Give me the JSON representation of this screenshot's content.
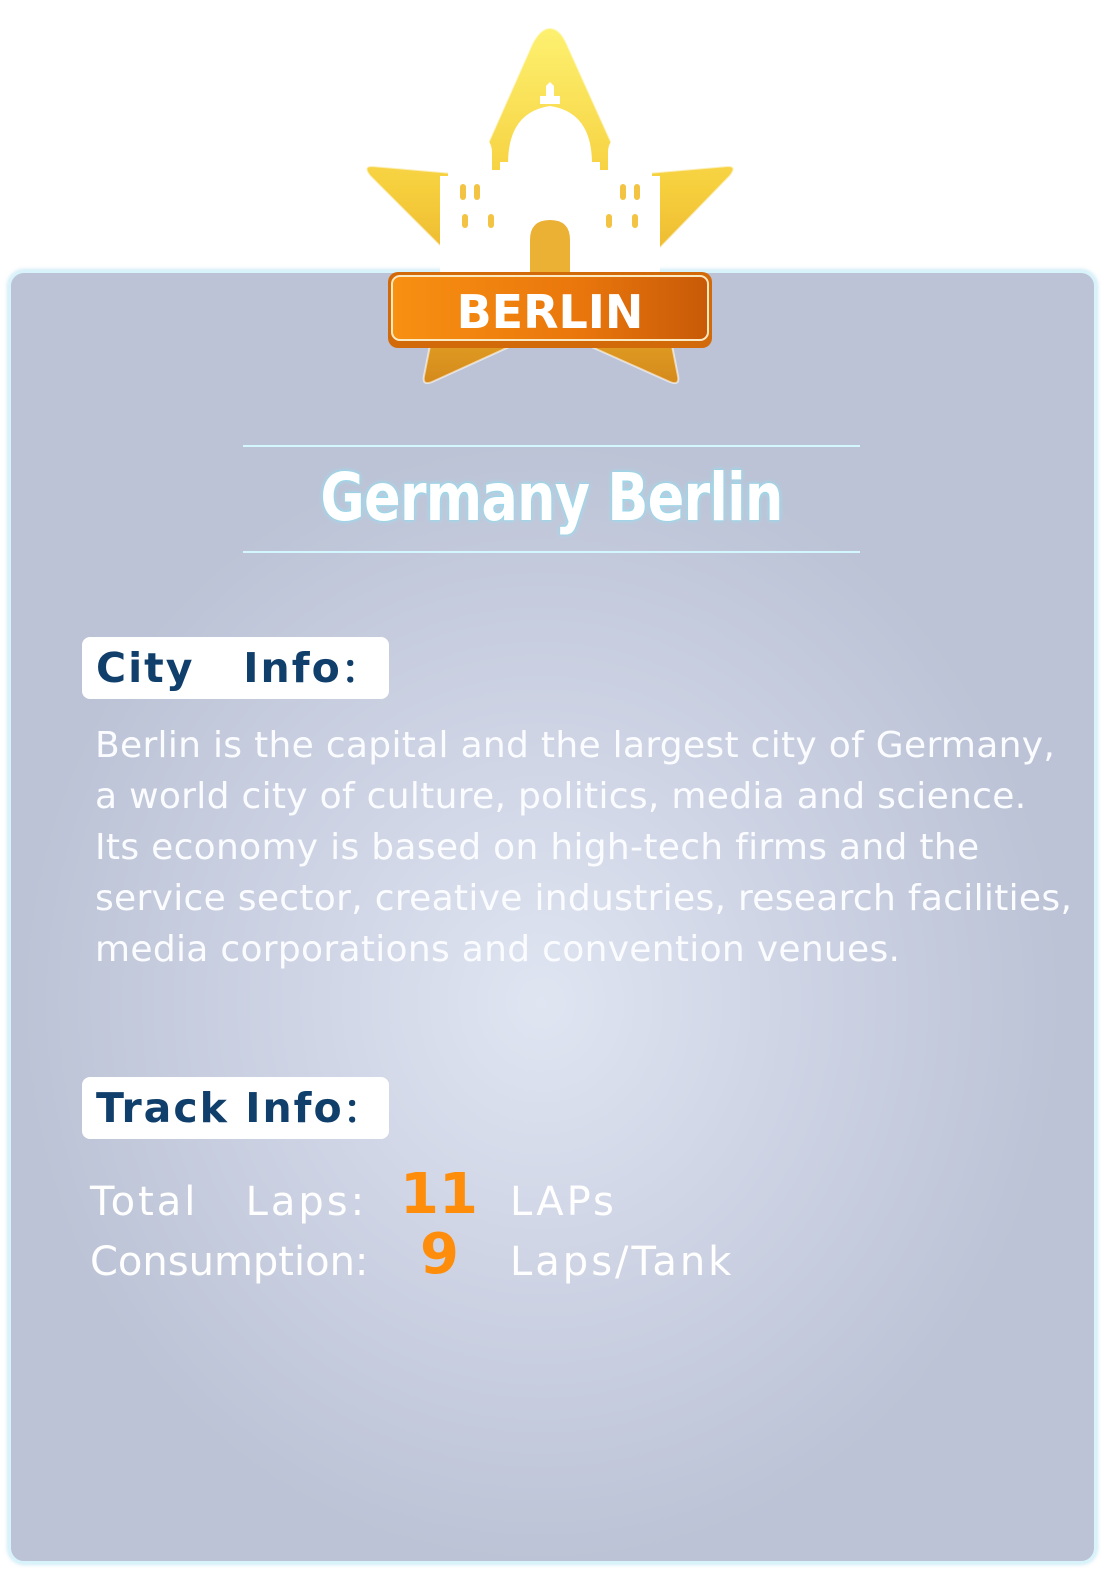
{
  "badge": {
    "label": "BERLIN",
    "icon": "cathedral-icon",
    "star_color": "#f2c431",
    "ribbon_color": "#e8760a"
  },
  "title": "Germany Berlin",
  "city_info": {
    "label": "City   Info",
    "colon": "：",
    "lines": [
      "Berlin is the capital and the largest city of Germany,",
      "a world city of culture, politics, media and science.",
      "Its economy is based on high-tech firms and the",
      "service sector, creative industries, research facilities,",
      "media corporations and convention venues."
    ]
  },
  "track_info": {
    "label": "Track Info",
    "colon": "：",
    "total_laps": {
      "label": "Total   Laps:",
      "value": "11",
      "unit": "LAPs"
    },
    "consumption": {
      "label": "Consumption:",
      "value": "9",
      "unit": "Laps/Tank"
    }
  },
  "colors": {
    "accent_number": "#ff8d0c",
    "label_text": "#103f6b",
    "title_glow": "#7fd8ec"
  }
}
